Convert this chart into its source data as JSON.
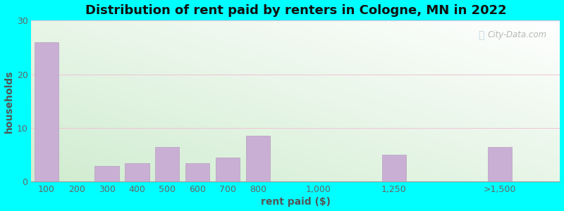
{
  "title": "Distribution of rent paid by renters in Cologne, MN in 2022",
  "xlabel": "rent paid ($)",
  "ylabel": "households",
  "categories": [
    "100",
    "200",
    "300",
    "400",
    "500",
    "600",
    "700",
    "800",
    "1,000",
    "1,250",
    ">1,500"
  ],
  "x_values": [
    100,
    200,
    300,
    400,
    500,
    600,
    700,
    800,
    1000,
    1250,
    1600
  ],
  "values": [
    26,
    0,
    3,
    3.5,
    6.5,
    3.5,
    4.5,
    8.5,
    0,
    5,
    6.5
  ],
  "bar_color": "#c9afd4",
  "bar_edge_color": "#b89fc0",
  "ylim": [
    0,
    30
  ],
  "yticks": [
    0,
    10,
    20,
    30
  ],
  "xlim": [
    50,
    1800
  ],
  "grid_color": "#f0c8d8",
  "outer_bg_color": "#00ffff",
  "title_fontsize": 13,
  "axis_label_fontsize": 10,
  "tick_fontsize": 9,
  "watermark_text": "City-Data.com"
}
